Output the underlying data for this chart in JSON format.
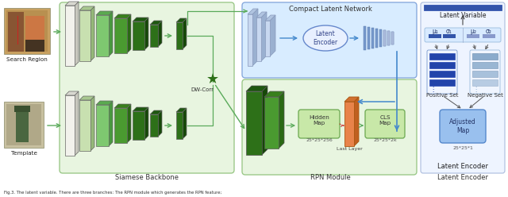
{
  "fig_width": 6.4,
  "fig_height": 2.48,
  "dpi": 100,
  "title_compact": "Compact Latent Network",
  "label_siamese": "Siamese Backbone",
  "label_rpn": "RPN Module",
  "label_latent_enc_title": "Latent Encoder",
  "label_dwcorr": "DW-Corr",
  "label_latent_var": "Latent Variable",
  "label_pos": "Positive Set",
  "label_neg": "Negative Set",
  "label_adjusted": "Adjusted\nMap",
  "label_hidden": "Hidden\nMap",
  "label_cls": "CLS\nMap",
  "label_last": "Last Layer",
  "label_latent_enc": "Latent\nEncoder",
  "label_25_256": "25*25*256",
  "label_25_2k": "25*25*2k",
  "label_25_1": "25*25*1",
  "label_mu1": "μ₁",
  "label_sigma1": "σ₁",
  "label_mu2": "μ₂",
  "label_sigma2": "σ₂",
  "label_search": "Search Region",
  "label_template": "Template"
}
